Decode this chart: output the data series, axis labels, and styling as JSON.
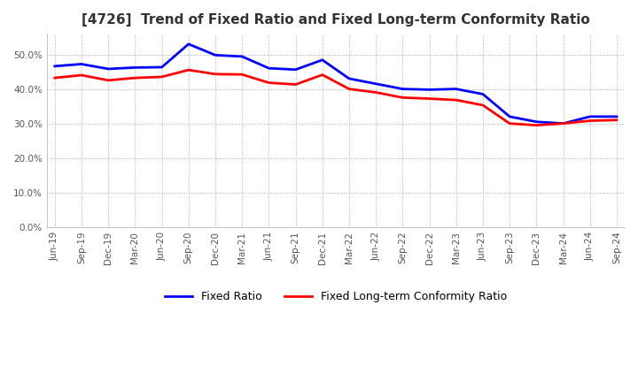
{
  "title": "[4726]  Trend of Fixed Ratio and Fixed Long-term Conformity Ratio",
  "title_fontsize": 11,
  "fixed_ratio": {
    "label": "Fixed Ratio",
    "color": "#0000FF",
    "data": [
      [
        "Jun-19",
        0.466
      ],
      [
        "Sep-19",
        0.472
      ],
      [
        "Dec-19",
        0.458
      ],
      [
        "Mar-20",
        0.462
      ],
      [
        "Jun-20",
        0.463
      ],
      [
        "Sep-20",
        0.53
      ],
      [
        "Dec-20",
        0.498
      ],
      [
        "Mar-21",
        0.494
      ],
      [
        "Jun-21",
        0.46
      ],
      [
        "Sep-21",
        0.456
      ],
      [
        "Dec-21",
        0.484
      ],
      [
        "Mar-22",
        0.43
      ],
      [
        "Jun-22",
        0.415
      ],
      [
        "Sep-22",
        0.4
      ],
      [
        "Dec-22",
        0.398
      ],
      [
        "Mar-23",
        0.4
      ],
      [
        "Jun-23",
        0.385
      ],
      [
        "Sep-23",
        0.32
      ],
      [
        "Dec-23",
        0.305
      ],
      [
        "Mar-24",
        0.3
      ],
      [
        "Jun-24",
        0.32
      ],
      [
        "Sep-24",
        0.32
      ]
    ]
  },
  "fixed_longterm_ratio": {
    "label": "Fixed Long-term Conformity Ratio",
    "color": "#FF0000",
    "data": [
      [
        "Jun-19",
        0.432
      ],
      [
        "Sep-19",
        0.44
      ],
      [
        "Dec-19",
        0.425
      ],
      [
        "Mar-20",
        0.432
      ],
      [
        "Jun-20",
        0.435
      ],
      [
        "Sep-20",
        0.455
      ],
      [
        "Dec-20",
        0.443
      ],
      [
        "Mar-21",
        0.442
      ],
      [
        "Jun-21",
        0.418
      ],
      [
        "Sep-21",
        0.413
      ],
      [
        "Dec-21",
        0.441
      ],
      [
        "Mar-22",
        0.4
      ],
      [
        "Jun-22",
        0.39
      ],
      [
        "Sep-22",
        0.375
      ],
      [
        "Dec-22",
        0.372
      ],
      [
        "Mar-23",
        0.368
      ],
      [
        "Jun-23",
        0.353
      ],
      [
        "Sep-23",
        0.3
      ],
      [
        "Dec-23",
        0.295
      ],
      [
        "Mar-24",
        0.3
      ],
      [
        "Jun-24",
        0.308
      ],
      [
        "Sep-24",
        0.31
      ]
    ]
  },
  "ylim": [
    0.0,
    0.56
  ],
  "yticks": [
    0.0,
    0.1,
    0.2,
    0.3,
    0.4,
    0.5
  ],
  "background_color": "#FFFFFF",
  "plot_bg_color": "#FFFFFF",
  "grid_color": "#AAAAAA",
  "legend_loc": "lower center",
  "legend_ncol": 2
}
